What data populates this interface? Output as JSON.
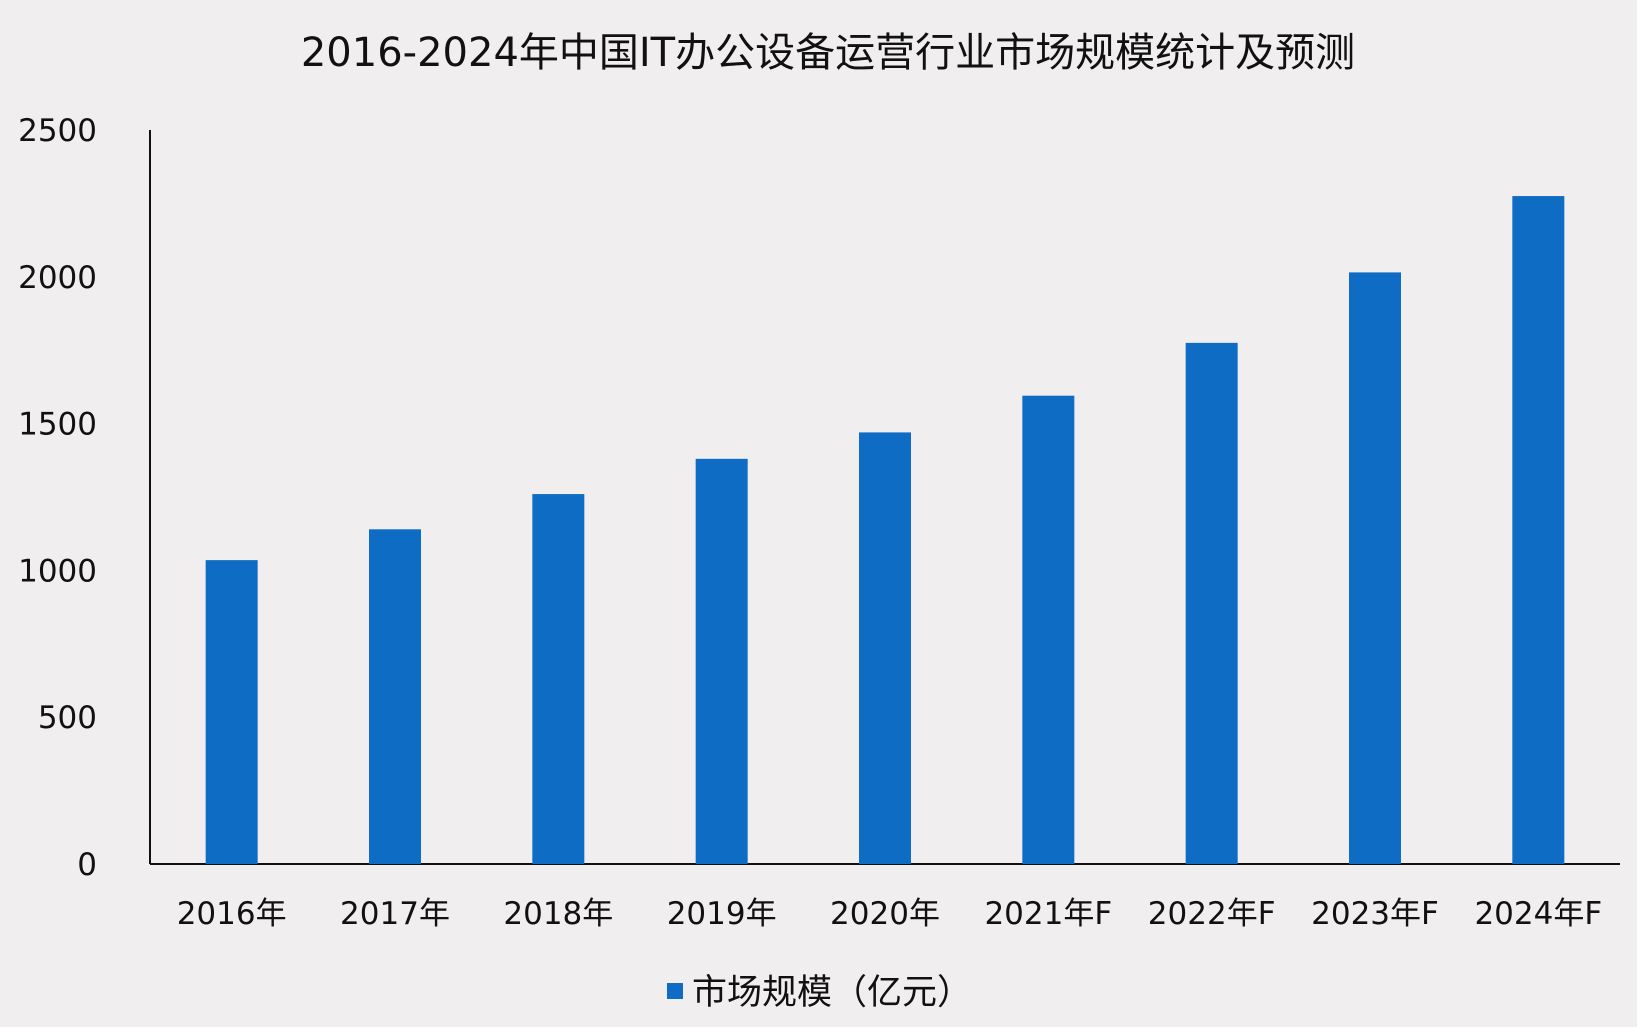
{
  "chart_data": {
    "type": "bar",
    "title": "2016-2024年中国IT办公设备运营行业市场规模统计及预测",
    "categories": [
      "2016年",
      "2017年",
      "2018年",
      "2019年",
      "2020年",
      "2021年F",
      "2022年F",
      "2023年F",
      "2024年F"
    ],
    "series": [
      {
        "name": "市场规模（亿元）",
        "color": "#0f6cc4",
        "values": [
          1035,
          1140,
          1260,
          1380,
          1470,
          1595,
          1775,
          2015,
          2275
        ]
      }
    ],
    "xlabel": "",
    "ylabel": "",
    "ylim": [
      0,
      2500
    ],
    "yticks": [
      "0",
      "500",
      "1000",
      "1500",
      "2000",
      "2500"
    ],
    "grid": false,
    "legend": "bottom-center"
  }
}
